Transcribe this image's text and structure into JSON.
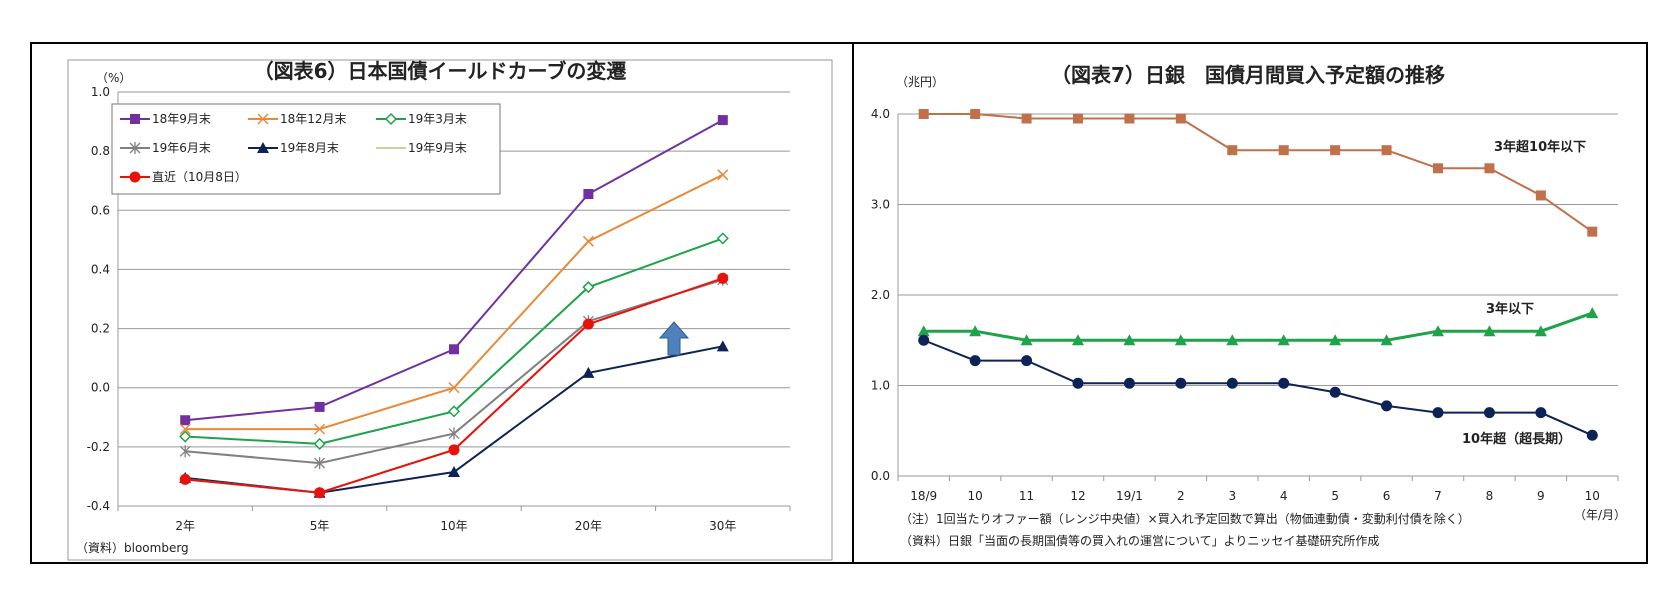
{
  "chart_data": [
    {
      "type": "line",
      "title": "（図表6）日本国債イールドカーブの変遷",
      "unit_label": "（%）",
      "source": "（資料）bloomberg",
      "categories": [
        "2年",
        "5年",
        "10年",
        "20年",
        "30年"
      ],
      "ylim": [
        -0.4,
        1.0
      ],
      "y_ticks": [
        "1.0",
        "0.8",
        "0.6",
        "0.4",
        "0.2",
        "0.0",
        "-0.2",
        "-0.4"
      ],
      "grid": true,
      "legend_position": "top-left",
      "series": [
        {
          "name": "18年9月末",
          "color": "#7030A0",
          "marker": "square",
          "values": [
            -0.11,
            -0.065,
            0.13,
            0.655,
            0.905
          ]
        },
        {
          "name": "18年12月末",
          "color": "#E88A3A",
          "marker": "x",
          "values": [
            -0.14,
            -0.14,
            0.0,
            0.495,
            0.72
          ]
        },
        {
          "name": "19年3月末",
          "color": "#1EA34A",
          "marker": "diamond",
          "values": [
            -0.165,
            -0.19,
            -0.08,
            0.34,
            0.505
          ]
        },
        {
          "name": "19年6月末",
          "color": "#808080",
          "marker": "star",
          "values": [
            -0.215,
            -0.255,
            -0.155,
            0.225,
            0.365
          ]
        },
        {
          "name": "19年8月末",
          "color": "#0D2356",
          "marker": "triangle",
          "values": [
            -0.305,
            -0.355,
            -0.285,
            0.05,
            0.14
          ]
        },
        {
          "name": "19年9月末",
          "color": "#C4D79B",
          "marker": "none",
          "values": [
            -0.31,
            -0.355,
            -0.21,
            0.215,
            0.37
          ]
        },
        {
          "name": "直近（10月8日）",
          "color": "#E8120C",
          "marker": "circle",
          "values": [
            -0.31,
            -0.355,
            -0.21,
            0.215,
            0.37
          ]
        }
      ]
    },
    {
      "type": "line",
      "title": "（図表7）日銀　国債月間買入予定額の推移",
      "unit_label": "（兆円）",
      "x_unit": "（年/月）",
      "categories": [
        "18/9",
        "10",
        "11",
        "12",
        "19/1",
        "2",
        "3",
        "4",
        "5",
        "6",
        "7",
        "8",
        "9",
        "10"
      ],
      "ylim": [
        0.0,
        4.0
      ],
      "y_ticks": [
        "4.0",
        "3.0",
        "2.0",
        "1.0",
        "0.0"
      ],
      "grid": true,
      "notes": [
        "（注）1回当たりオファー額（レンジ中央値）×買入れ予定回数で算出（物価連動債・変動利付債を除く）",
        "（資料）日銀「当面の長期国債等の買入れの運営について」よりニッセイ基礎研究所作成"
      ],
      "series": [
        {
          "name": "3年超10年以下",
          "color": "#C0704A",
          "marker": "square",
          "values": [
            4.0,
            4.0,
            3.95,
            3.95,
            3.95,
            3.95,
            3.6,
            3.6,
            3.6,
            3.6,
            3.4,
            3.4,
            3.1,
            2.7
          ]
        },
        {
          "name": "3年以下",
          "color": "#1EA34A",
          "marker": "triangle",
          "values": [
            1.6,
            1.6,
            1.5,
            1.5,
            1.5,
            1.5,
            1.5,
            1.5,
            1.5,
            1.5,
            1.6,
            1.6,
            1.6,
            1.8
          ]
        },
        {
          "name": "10年超（超長期）",
          "color": "#0D2356",
          "marker": "circle",
          "values": [
            1.5,
            1.275,
            1.275,
            1.025,
            1.025,
            1.025,
            1.025,
            1.025,
            0.925,
            0.775,
            0.7,
            0.7,
            0.7,
            0.45
          ]
        }
      ]
    }
  ]
}
